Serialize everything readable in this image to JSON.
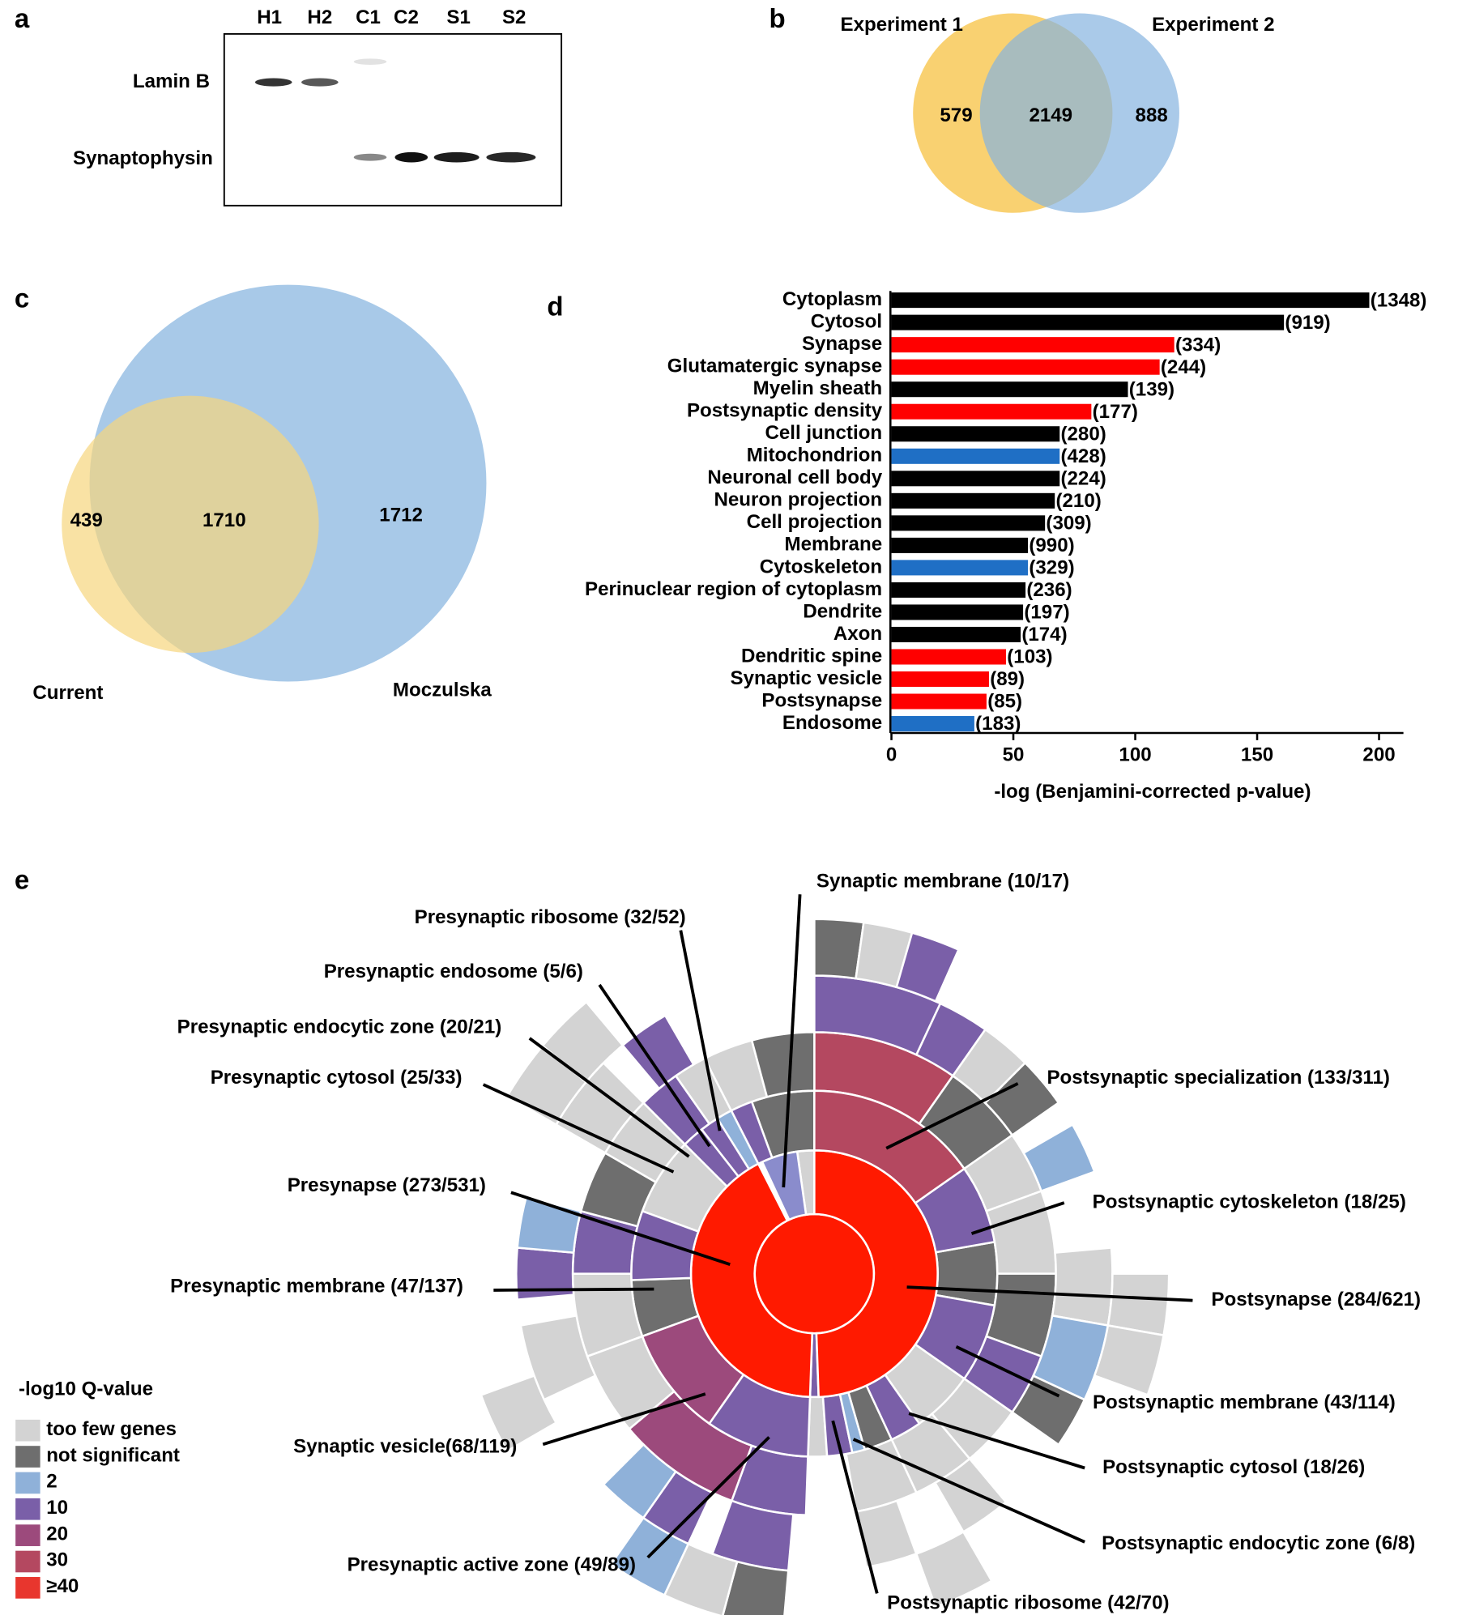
{
  "panel_labels": [
    "a",
    "b",
    "c",
    "d",
    "e"
  ],
  "blot": {
    "lanes": [
      "H1",
      "H2",
      "C1",
      "C2",
      "S1",
      "S2"
    ],
    "proteins": [
      "Lamin B",
      "Synaptophysin"
    ]
  },
  "chart_data": [
    {
      "type": "venn",
      "sets": [
        "Experiment 1",
        "Experiment 2"
      ],
      "values": [
        579,
        2149,
        888
      ],
      "colors": [
        "#f8cc62",
        "#86b3e0"
      ]
    },
    {
      "type": "venn",
      "sets": [
        "Current",
        "Moczulska"
      ],
      "values": [
        439,
        1710,
        1712
      ],
      "colors": [
        "#f6d67e",
        "#9ec3e6"
      ]
    },
    {
      "type": "bar",
      "orientation": "horizontal",
      "categories": [
        "Cytoplasm",
        "Cytosol",
        "Synapse",
        "Glutamatergic synapse",
        "Myelin sheath",
        "Postsynaptic density",
        "Cell junction",
        "Mitochondrion",
        "Neuronal cell body",
        "Neuron projection",
        "Cell projection",
        "Membrane",
        "Cytoskeleton",
        "Perinuclear region of cytoplasm",
        "Dendrite",
        "Axon",
        "Dendritic spine",
        "Synaptic vesicle",
        "Postsynapse",
        "Endosome"
      ],
      "values": [
        196,
        161,
        116,
        110,
        97,
        82,
        69,
        69,
        69,
        67,
        63,
        56,
        56,
        55,
        54,
        53,
        47,
        40,
        39,
        34
      ],
      "colors": [
        "#000000",
        "#000000",
        "#ff0000",
        "#ff0000",
        "#000000",
        "#ff0000",
        "#000000",
        "#1f6fc5",
        "#000000",
        "#000000",
        "#000000",
        "#000000",
        "#1f6fc5",
        "#000000",
        "#000000",
        "#000000",
        "#ff0000",
        "#ff0000",
        "#ff0000",
        "#1f6fc5"
      ],
      "annotations": [
        "(1348)",
        "(919)",
        "(334)",
        "(244)",
        "(139)",
        "(177)",
        "(280)",
        "(428)",
        "(224)",
        "(210)",
        "(309)",
        "(990)",
        "(329)",
        "(236)",
        "(197)",
        "(174)",
        "(103)",
        "(89)",
        "(85)",
        "(183)"
      ],
      "x_label": "-log (Benjamini-corrected p-value)",
      "xlim": [
        0,
        210
      ],
      "xticks": [
        0,
        50,
        100,
        150,
        200
      ]
    },
    {
      "type": "sunburst",
      "segments": [
        {
          "label": "Synaptic membrane (10/17)",
          "color": "#8a8ccc"
        },
        {
          "label": "Presynaptic ribosome (32/52)",
          "color": "#7a5fa8"
        },
        {
          "label": "Presynaptic endosome (5/6)",
          "color": "#8fb1d9"
        },
        {
          "label": "Presynaptic endocytic zone (20/21)",
          "color": "#7a5fa8"
        },
        {
          "label": "Presynaptic cytosol (25/33)",
          "color": "#7a5fa8"
        },
        {
          "label": "Presynapse (273/531)",
          "color": "#ff1a00"
        },
        {
          "label": "Presynaptic membrane (47/137)",
          "color": "#7a5fa8"
        },
        {
          "label": "Synaptic vesicle(68/119)",
          "color": "#9c4a7c"
        },
        {
          "label": "Presynaptic active zone (49/89)",
          "color": "#7a5fa8"
        },
        {
          "label": "Postsynaptic ribosome (42/70)",
          "color": "#7a5fa8"
        },
        {
          "label": "Postsynaptic endocytic zone (6/8)",
          "color": "#8fb1d9"
        },
        {
          "label": "Postsynaptic cytosol (18/26)",
          "color": "#7a5fa8"
        },
        {
          "label": "Postsynaptic membrane (43/114)",
          "color": "#7a5fa8"
        },
        {
          "label": "Postsynapse (284/621)",
          "color": "#ff1a00"
        },
        {
          "label": "Postsynaptic cytoskeleton (18/25)",
          "color": "#7a5fa8"
        },
        {
          "label": "Postsynaptic specialization (133/311)",
          "color": "#b44860"
        }
      ],
      "legend": {
        "title": "-log10 Q-value",
        "items": [
          {
            "label": "too few genes",
            "color": "#d3d3d3"
          },
          {
            "label": "not significant",
            "color": "#6e6e6e"
          },
          {
            "label": "2",
            "color": "#8fb1d9"
          },
          {
            "label": "10",
            "color": "#7a5fa8"
          },
          {
            "label": "20",
            "color": "#9c4a7c"
          },
          {
            "label": "30",
            "color": "#b44860"
          },
          {
            "label": "≥40",
            "color": "#e8362e"
          }
        ]
      }
    }
  ]
}
